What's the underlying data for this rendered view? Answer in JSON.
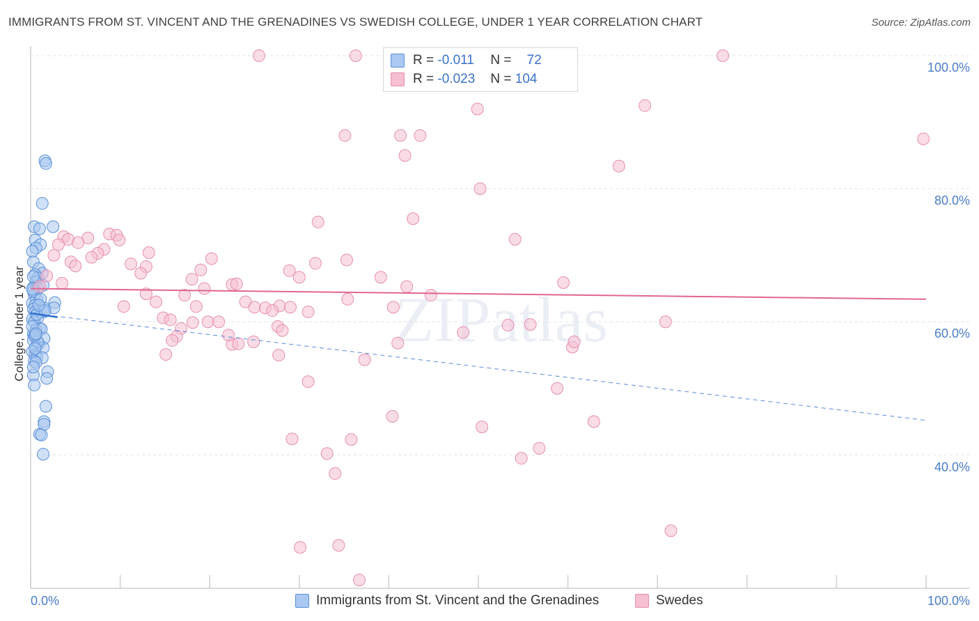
{
  "header": {
    "title": "IMMIGRANTS FROM ST. VINCENT AND THE GRENADINES VS SWEDISH COLLEGE, UNDER 1 YEAR CORRELATION CHART",
    "source": "Source: ZipAtlas.com"
  },
  "watermark": "ZIPatlas",
  "legend": {
    "rows": [
      {
        "r_label": "R =",
        "r_value": "-0.011",
        "n_label": "N =",
        "n_value": "72"
      },
      {
        "r_label": "R =",
        "r_value": "-0.023",
        "n_label": "N =",
        "n_value": "104"
      }
    ]
  },
  "colors": {
    "series1_fill": "#aac8f0",
    "series1_stroke": "#5a8fd8",
    "series1_line": "#2f6fd0",
    "series2_fill": "#f6bfd2",
    "series2_stroke": "#e58fb0",
    "series2_line": "#e06590",
    "tick_label": "#4a7cc9",
    "grid": "#e3e3e3"
  },
  "chart_data": {
    "type": "scatter",
    "title": "IMMIGRANTS FROM ST. VINCENT AND THE GRENADINES VS SWEDISH COLLEGE, UNDER 1 YEAR CORRELATION CHART",
    "xlabel": "",
    "ylabel": "College, Under 1 year",
    "xlim": [
      0,
      100
    ],
    "ylim": [
      21,
      100
    ],
    "x_tick_labels": [
      "0.0%",
      "100.0%"
    ],
    "y_tick_labels": [
      "40.0%",
      "60.0%",
      "80.0%",
      "100.0%"
    ],
    "y_ticks": [
      40,
      60,
      80,
      100
    ],
    "grid": true,
    "legend_placement": "bottom",
    "series": [
      {
        "name": "Immigrants from St. Vincent and the Grenadines",
        "r": -0.011,
        "n": 72,
        "trend_solid": {
          "x": [
            0,
            3.0
          ],
          "y": [
            61.3,
            60.7
          ]
        },
        "trend_dashed": {
          "x": [
            0,
            100
          ],
          "y": [
            61.3,
            45.2
          ]
        },
        "points": [
          [
            1.6,
            84.2
          ],
          [
            1.7,
            83.8
          ],
          [
            1.3,
            77.8
          ],
          [
            0.4,
            74.3
          ],
          [
            1.0,
            74.0
          ],
          [
            2.5,
            74.3
          ],
          [
            0.5,
            72.3
          ],
          [
            1.1,
            71.6
          ],
          [
            0.6,
            71.1
          ],
          [
            0.2,
            70.6
          ],
          [
            0.3,
            69.0
          ],
          [
            0.9,
            68.0
          ],
          [
            1.3,
            67.3
          ],
          [
            0.5,
            67.1
          ],
          [
            0.8,
            66.6
          ],
          [
            0.6,
            66.0
          ],
          [
            1.4,
            65.5
          ],
          [
            0.3,
            65.2
          ],
          [
            0.8,
            65.0
          ],
          [
            0.4,
            64.0
          ],
          [
            0.7,
            63.4
          ],
          [
            2.7,
            62.9
          ],
          [
            0.2,
            62.8
          ],
          [
            0.5,
            62.5
          ],
          [
            1.5,
            62.1
          ],
          [
            2.6,
            62.1
          ],
          [
            0.3,
            61.9
          ],
          [
            0.5,
            61.5
          ],
          [
            1.5,
            61.5
          ],
          [
            0.6,
            61.0
          ],
          [
            0.8,
            60.6
          ],
          [
            0.2,
            60.4
          ],
          [
            0.4,
            60.0
          ],
          [
            1.0,
            59.0
          ],
          [
            0.6,
            58.8
          ],
          [
            1.2,
            58.9
          ],
          [
            0.3,
            58.2
          ],
          [
            0.4,
            57.8
          ],
          [
            1.5,
            57.5
          ],
          [
            0.3,
            57.2
          ],
          [
            0.9,
            56.7
          ],
          [
            0.6,
            56.2
          ],
          [
            1.4,
            56.1
          ],
          [
            0.2,
            55.5
          ],
          [
            0.5,
            55.0
          ],
          [
            0.7,
            54.7
          ],
          [
            1.3,
            54.6
          ],
          [
            0.4,
            54.1
          ],
          [
            0.6,
            53.9
          ],
          [
            1.9,
            52.5
          ],
          [
            0.3,
            52.0
          ],
          [
            1.8,
            51.5
          ],
          [
            0.4,
            50.5
          ],
          [
            1.7,
            47.3
          ],
          [
            1.5,
            45.0
          ],
          [
            1.5,
            44.6
          ],
          [
            1.0,
            43.1
          ],
          [
            1.2,
            43.0
          ],
          [
            1.4,
            40.1
          ],
          [
            0.3,
            64.6
          ],
          [
            0.2,
            59.3
          ],
          [
            0.7,
            61.1
          ],
          [
            1.1,
            63.4
          ],
          [
            0.8,
            57.0
          ],
          [
            0.3,
            53.2
          ],
          [
            0.5,
            58.0
          ],
          [
            0.3,
            66.8
          ],
          [
            1.6,
            61.7
          ],
          [
            0.9,
            62.5
          ],
          [
            0.6,
            58.2
          ],
          [
            0.5,
            56.0
          ],
          [
            0.2,
            64.9
          ]
        ]
      },
      {
        "name": "Swedes",
        "r": -0.023,
        "n": 104,
        "trend_solid": {
          "x": [
            0,
            100
          ],
          "y": [
            65.0,
            63.4
          ]
        },
        "points": [
          [
            25.5,
            100.0
          ],
          [
            36.3,
            100.0
          ],
          [
            46.5,
            100.0
          ],
          [
            77.3,
            100.0
          ],
          [
            49.9,
            92.0
          ],
          [
            68.6,
            92.5
          ],
          [
            35.1,
            88.0
          ],
          [
            41.3,
            88.0
          ],
          [
            43.5,
            88.0
          ],
          [
            99.7,
            87.5
          ],
          [
            41.8,
            85.0
          ],
          [
            65.7,
            83.4
          ],
          [
            50.2,
            80.0
          ],
          [
            42.7,
            75.5
          ],
          [
            32.1,
            75.0
          ],
          [
            3.7,
            72.8
          ],
          [
            6.4,
            72.6
          ],
          [
            8.8,
            73.2
          ],
          [
            9.6,
            73.0
          ],
          [
            4.2,
            72.4
          ],
          [
            5.3,
            71.9
          ],
          [
            9.9,
            72.3
          ],
          [
            54.1,
            72.4
          ],
          [
            3.1,
            71.6
          ],
          [
            8.2,
            70.9
          ],
          [
            7.5,
            70.3
          ],
          [
            13.2,
            70.4
          ],
          [
            2.6,
            70.0
          ],
          [
            6.8,
            69.7
          ],
          [
            20.2,
            69.5
          ],
          [
            4.5,
            69.0
          ],
          [
            35.3,
            69.3
          ],
          [
            11.2,
            68.7
          ],
          [
            12.9,
            68.3
          ],
          [
            5.0,
            68.4
          ],
          [
            31.8,
            68.8
          ],
          [
            19.0,
            67.8
          ],
          [
            28.9,
            67.7
          ],
          [
            12.3,
            67.3
          ],
          [
            1.8,
            66.9
          ],
          [
            18.0,
            66.4
          ],
          [
            30.0,
            66.7
          ],
          [
            39.1,
            66.7
          ],
          [
            59.5,
            65.9
          ],
          [
            3.5,
            65.8
          ],
          [
            1.0,
            65.3
          ],
          [
            22.5,
            65.6
          ],
          [
            23.0,
            65.7
          ],
          [
            42.0,
            65.3
          ],
          [
            19.4,
            65.0
          ],
          [
            12.9,
            64.2
          ],
          [
            17.2,
            64.0
          ],
          [
            44.7,
            64.0
          ],
          [
            24.0,
            63.0
          ],
          [
            14.0,
            63.0
          ],
          [
            18.5,
            62.3
          ],
          [
            25.0,
            62.2
          ],
          [
            27.8,
            62.4
          ],
          [
            29.0,
            62.2
          ],
          [
            10.4,
            62.3
          ],
          [
            26.2,
            62.1
          ],
          [
            27.0,
            61.7
          ],
          [
            31.0,
            61.5
          ],
          [
            14.8,
            60.6
          ],
          [
            15.6,
            60.3
          ],
          [
            19.8,
            60.0
          ],
          [
            18.1,
            59.9
          ],
          [
            21.0,
            60.0
          ],
          [
            27.6,
            59.3
          ],
          [
            28.1,
            58.7
          ],
          [
            55.8,
            59.6
          ],
          [
            53.3,
            59.5
          ],
          [
            16.8,
            59.0
          ],
          [
            16.3,
            57.8
          ],
          [
            15.8,
            57.2
          ],
          [
            22.5,
            56.6
          ],
          [
            23.2,
            56.7
          ],
          [
            24.9,
            57.0
          ],
          [
            41.0,
            56.8
          ],
          [
            60.5,
            56.2
          ],
          [
            15.1,
            55.1
          ],
          [
            27.7,
            55.0
          ],
          [
            37.3,
            54.3
          ],
          [
            31.0,
            51.0
          ],
          [
            58.8,
            50.0
          ],
          [
            40.4,
            45.8
          ],
          [
            62.9,
            45.0
          ],
          [
            50.4,
            44.2
          ],
          [
            29.2,
            42.4
          ],
          [
            35.8,
            42.3
          ],
          [
            56.8,
            41.0
          ],
          [
            33.1,
            40.2
          ],
          [
            34.0,
            37.2
          ],
          [
            54.8,
            39.5
          ],
          [
            71.5,
            28.6
          ],
          [
            30.1,
            26.1
          ],
          [
            34.4,
            26.4
          ],
          [
            36.7,
            21.2
          ],
          [
            48.3,
            58.4
          ],
          [
            40.5,
            62.2
          ],
          [
            60.7,
            57.0
          ],
          [
            35.4,
            63.4
          ],
          [
            70.9,
            60.0
          ],
          [
            22.1,
            58.0
          ]
        ]
      }
    ]
  },
  "axes": {
    "x_left": "0.0%",
    "x_right": "100.0%",
    "y_ticks": [
      "40.0%",
      "60.0%",
      "80.0%",
      "100.0%"
    ],
    "ylabel": "College, Under 1 year"
  }
}
